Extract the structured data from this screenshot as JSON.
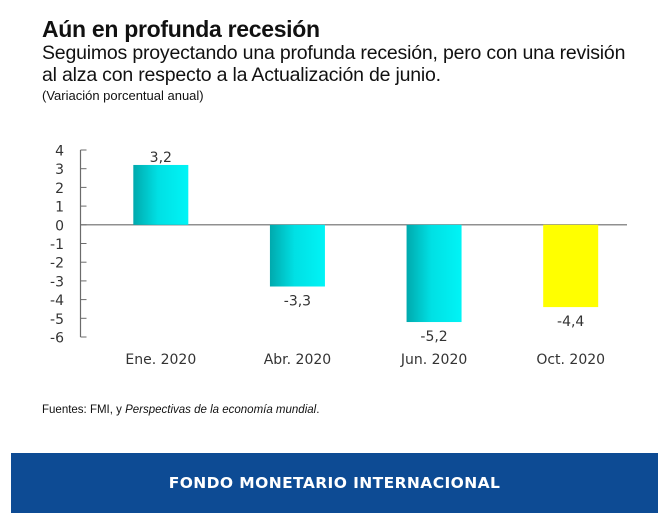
{
  "header": {
    "title": "Aún en profunda recesión",
    "subtitle": "Seguimos proyectando una profunda recesión, pero con una revisión al alza con respecto a la Actualización de junio.",
    "units": "(Variación porcentual anual)"
  },
  "chart_data": {
    "type": "bar",
    "title": "Aún en profunda recesión",
    "subtitle": "Seguimos proyectando una profunda recesión, pero con una revisión al alza con respecto a la Actualización de junio.",
    "xlabel": "",
    "ylabel": "(Variación porcentual anual)",
    "categories": [
      "Ene. 2020",
      "Abr. 2020",
      "Jun. 2020",
      "Oct. 2020"
    ],
    "values": [
      3.2,
      -3.3,
      -5.2,
      -4.4
    ],
    "data_labels": [
      "3,2",
      "-3,3",
      "-5,2",
      "-4,4"
    ],
    "bar_colors": [
      "#00e5e8",
      "#00e5e8",
      "#00e5e8",
      "#ffff00"
    ],
    "ylim": [
      -6,
      4
    ],
    "yticks": [
      4,
      3,
      2,
      1,
      0,
      -1,
      -2,
      -3,
      -4,
      -5,
      -6
    ],
    "grid": false,
    "legend": "none"
  },
  "footer": {
    "source_prefix": "Fuentes: FMI, y ",
    "source_italic": "Perspectivas de la economía mundial",
    "source_suffix": "."
  },
  "banner": {
    "text": "FONDO MONETARIO INTERNACIONAL",
    "color": "#0d4b94"
  }
}
